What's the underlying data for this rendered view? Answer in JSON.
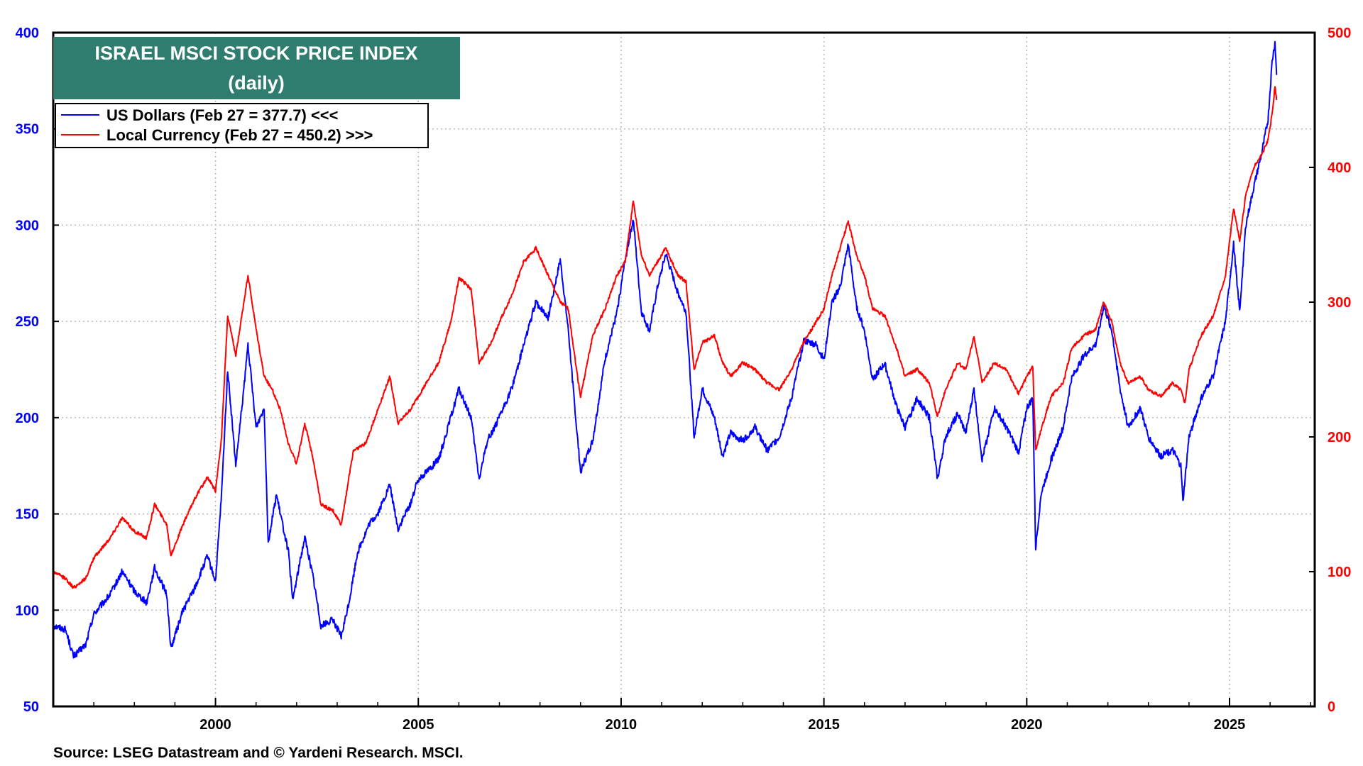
{
  "chart_data": {
    "type": "line",
    "title": "ISRAEL MSCI STOCK PRICE INDEX",
    "subtitle": "(daily)",
    "source": "Source: LSEG Datastream and © Yardeni Research. MSCI.",
    "xlim": [
      1996.0,
      2027.1
    ],
    "x_ticks": [
      2000,
      2005,
      2010,
      2015,
      2020,
      2025
    ],
    "x_tick_labels": [
      "2000",
      "2005",
      "2010",
      "2015",
      "2020",
      "2025"
    ],
    "y_left": {
      "lim": [
        50,
        400
      ],
      "ticks": [
        50,
        100,
        150,
        200,
        250,
        300,
        350,
        400
      ],
      "tick_labels": [
        "50",
        "100",
        "150",
        "200",
        "250",
        "300",
        "350",
        "400"
      ],
      "color": "#0000ff"
    },
    "y_right": {
      "lim": [
        0,
        500
      ],
      "ticks": [
        0,
        100,
        200,
        300,
        400,
        500
      ],
      "tick_labels": [
        "0",
        "100",
        "200",
        "300",
        "400",
        "500"
      ],
      "color": "#ff0000"
    },
    "grid": true,
    "legend_position": "top-left",
    "series": [
      {
        "name": "US Dollars",
        "legend_label": "US Dollars (Feb 27 = 377.7) <<<",
        "axis": "left",
        "color": "#0000ff",
        "points": [
          [
            1996.0,
            92
          ],
          [
            1996.3,
            90
          ],
          [
            1996.5,
            76
          ],
          [
            1996.8,
            82
          ],
          [
            1997.0,
            98
          ],
          [
            1997.4,
            108
          ],
          [
            1997.7,
            120
          ],
          [
            1998.0,
            110
          ],
          [
            1998.3,
            104
          ],
          [
            1998.5,
            122
          ],
          [
            1998.8,
            108
          ],
          [
            1998.9,
            80
          ],
          [
            1999.2,
            100
          ],
          [
            1999.5,
            112
          ],
          [
            1999.8,
            128
          ],
          [
            2000.0,
            115
          ],
          [
            2000.15,
            160
          ],
          [
            2000.3,
            225
          ],
          [
            2000.5,
            175
          ],
          [
            2000.7,
            215
          ],
          [
            2000.8,
            238
          ],
          [
            2001.0,
            195
          ],
          [
            2001.2,
            205
          ],
          [
            2001.3,
            135
          ],
          [
            2001.5,
            160
          ],
          [
            2001.8,
            130
          ],
          [
            2001.9,
            105
          ],
          [
            2002.2,
            138
          ],
          [
            2002.4,
            118
          ],
          [
            2002.6,
            92
          ],
          [
            2002.9,
            95
          ],
          [
            2003.1,
            86
          ],
          [
            2003.3,
            105
          ],
          [
            2003.5,
            130
          ],
          [
            2003.8,
            145
          ],
          [
            2004.0,
            150
          ],
          [
            2004.3,
            165
          ],
          [
            2004.5,
            142
          ],
          [
            2004.8,
            155
          ],
          [
            2005.0,
            168
          ],
          [
            2005.5,
            178
          ],
          [
            2005.8,
            200
          ],
          [
            2006.0,
            215
          ],
          [
            2006.3,
            200
          ],
          [
            2006.5,
            168
          ],
          [
            2006.7,
            188
          ],
          [
            2007.0,
            200
          ],
          [
            2007.3,
            215
          ],
          [
            2007.6,
            238
          ],
          [
            2007.9,
            260
          ],
          [
            2008.2,
            252
          ],
          [
            2008.5,
            282
          ],
          [
            2008.7,
            245
          ],
          [
            2008.9,
            195
          ],
          [
            2009.0,
            172
          ],
          [
            2009.3,
            188
          ],
          [
            2009.6,
            230
          ],
          [
            2009.9,
            255
          ],
          [
            2010.1,
            282
          ],
          [
            2010.3,
            303
          ],
          [
            2010.5,
            255
          ],
          [
            2010.7,
            245
          ],
          [
            2010.9,
            268
          ],
          [
            2011.1,
            285
          ],
          [
            2011.4,
            265
          ],
          [
            2011.6,
            255
          ],
          [
            2011.8,
            190
          ],
          [
            2012.0,
            215
          ],
          [
            2012.3,
            200
          ],
          [
            2012.5,
            180
          ],
          [
            2012.7,
            192
          ],
          [
            2013.0,
            188
          ],
          [
            2013.3,
            195
          ],
          [
            2013.6,
            183
          ],
          [
            2013.9,
            190
          ],
          [
            2014.2,
            210
          ],
          [
            2014.5,
            240
          ],
          [
            2014.8,
            238
          ],
          [
            2015.0,
            230
          ],
          [
            2015.2,
            260
          ],
          [
            2015.4,
            268
          ],
          [
            2015.6,
            290
          ],
          [
            2015.8,
            258
          ],
          [
            2016.0,
            245
          ],
          [
            2016.2,
            220
          ],
          [
            2016.5,
            228
          ],
          [
            2016.8,
            205
          ],
          [
            2017.0,
            195
          ],
          [
            2017.3,
            210
          ],
          [
            2017.6,
            200
          ],
          [
            2017.8,
            168
          ],
          [
            2018.0,
            190
          ],
          [
            2018.3,
            202
          ],
          [
            2018.5,
            192
          ],
          [
            2018.7,
            215
          ],
          [
            2018.9,
            178
          ],
          [
            2019.2,
            205
          ],
          [
            2019.5,
            195
          ],
          [
            2019.8,
            182
          ],
          [
            2020.0,
            205
          ],
          [
            2020.15,
            210
          ],
          [
            2020.22,
            132
          ],
          [
            2020.35,
            160
          ],
          [
            2020.6,
            178
          ],
          [
            2020.9,
            195
          ],
          [
            2021.1,
            220
          ],
          [
            2021.4,
            232
          ],
          [
            2021.7,
            238
          ],
          [
            2021.9,
            258
          ],
          [
            2022.1,
            245
          ],
          [
            2022.3,
            215
          ],
          [
            2022.5,
            195
          ],
          [
            2022.8,
            205
          ],
          [
            2023.0,
            190
          ],
          [
            2023.3,
            180
          ],
          [
            2023.6,
            183
          ],
          [
            2023.8,
            175
          ],
          [
            2023.85,
            156
          ],
          [
            2024.0,
            190
          ],
          [
            2024.3,
            210
          ],
          [
            2024.6,
            222
          ],
          [
            2024.9,
            250
          ],
          [
            2025.1,
            290
          ],
          [
            2025.25,
            255
          ],
          [
            2025.4,
            300
          ],
          [
            2025.6,
            320
          ],
          [
            2025.8,
            338
          ],
          [
            2025.95,
            355
          ],
          [
            2026.05,
            385
          ],
          [
            2026.12,
            395
          ],
          [
            2026.16,
            378
          ]
        ]
      },
      {
        "name": "Local Currency",
        "legend_label": "Local Currency (Feb 27 = 450.2) >>>",
        "axis": "right",
        "color": "#ff0000",
        "points": [
          [
            1996.0,
            100
          ],
          [
            1996.3,
            95
          ],
          [
            1996.5,
            88
          ],
          [
            1996.8,
            95
          ],
          [
            1997.0,
            110
          ],
          [
            1997.4,
            125
          ],
          [
            1997.7,
            140
          ],
          [
            1998.0,
            130
          ],
          [
            1998.3,
            125
          ],
          [
            1998.5,
            150
          ],
          [
            1998.8,
            135
          ],
          [
            1998.9,
            112
          ],
          [
            1999.2,
            135
          ],
          [
            1999.5,
            155
          ],
          [
            1999.8,
            170
          ],
          [
            2000.0,
            160
          ],
          [
            2000.15,
            200
          ],
          [
            2000.3,
            290
          ],
          [
            2000.5,
            260
          ],
          [
            2000.7,
            300
          ],
          [
            2000.8,
            320
          ],
          [
            2001.0,
            280
          ],
          [
            2001.2,
            245
          ],
          [
            2001.4,
            235
          ],
          [
            2001.6,
            220
          ],
          [
            2001.8,
            195
          ],
          [
            2002.0,
            180
          ],
          [
            2002.2,
            210
          ],
          [
            2002.4,
            185
          ],
          [
            2002.6,
            150
          ],
          [
            2002.9,
            145
          ],
          [
            2003.1,
            135
          ],
          [
            2003.4,
            190
          ],
          [
            2003.7,
            195
          ],
          [
            2004.0,
            220
          ],
          [
            2004.3,
            245
          ],
          [
            2004.5,
            210
          ],
          [
            2004.8,
            220
          ],
          [
            2005.0,
            230
          ],
          [
            2005.5,
            255
          ],
          [
            2005.8,
            285
          ],
          [
            2006.0,
            318
          ],
          [
            2006.3,
            310
          ],
          [
            2006.5,
            255
          ],
          [
            2006.8,
            270
          ],
          [
            2007.0,
            285
          ],
          [
            2007.3,
            305
          ],
          [
            2007.6,
            330
          ],
          [
            2007.9,
            340
          ],
          [
            2008.2,
            320
          ],
          [
            2008.5,
            300
          ],
          [
            2008.7,
            295
          ],
          [
            2008.9,
            250
          ],
          [
            2009.0,
            230
          ],
          [
            2009.3,
            275
          ],
          [
            2009.6,
            295
          ],
          [
            2009.9,
            320
          ],
          [
            2010.1,
            330
          ],
          [
            2010.3,
            375
          ],
          [
            2010.5,
            335
          ],
          [
            2010.7,
            320
          ],
          [
            2010.9,
            330
          ],
          [
            2011.1,
            340
          ],
          [
            2011.4,
            320
          ],
          [
            2011.6,
            315
          ],
          [
            2011.8,
            250
          ],
          [
            2012.0,
            270
          ],
          [
            2012.3,
            275
          ],
          [
            2012.5,
            255
          ],
          [
            2012.7,
            245
          ],
          [
            2013.0,
            255
          ],
          [
            2013.3,
            250
          ],
          [
            2013.6,
            240
          ],
          [
            2013.9,
            235
          ],
          [
            2014.2,
            250
          ],
          [
            2014.5,
            270
          ],
          [
            2014.8,
            285
          ],
          [
            2015.0,
            295
          ],
          [
            2015.2,
            320
          ],
          [
            2015.4,
            340
          ],
          [
            2015.6,
            360
          ],
          [
            2015.8,
            335
          ],
          [
            2016.0,
            320
          ],
          [
            2016.2,
            295
          ],
          [
            2016.5,
            290
          ],
          [
            2016.8,
            265
          ],
          [
            2017.0,
            245
          ],
          [
            2017.3,
            250
          ],
          [
            2017.6,
            240
          ],
          [
            2017.8,
            215
          ],
          [
            2018.0,
            235
          ],
          [
            2018.3,
            255
          ],
          [
            2018.5,
            250
          ],
          [
            2018.7,
            275
          ],
          [
            2018.9,
            240
          ],
          [
            2019.2,
            255
          ],
          [
            2019.5,
            250
          ],
          [
            2019.8,
            232
          ],
          [
            2020.0,
            245
          ],
          [
            2020.15,
            252
          ],
          [
            2020.22,
            190
          ],
          [
            2020.35,
            205
          ],
          [
            2020.6,
            230
          ],
          [
            2020.9,
            240
          ],
          [
            2021.1,
            265
          ],
          [
            2021.4,
            275
          ],
          [
            2021.7,
            280
          ],
          [
            2021.9,
            300
          ],
          [
            2022.1,
            285
          ],
          [
            2022.3,
            255
          ],
          [
            2022.5,
            240
          ],
          [
            2022.8,
            245
          ],
          [
            2023.0,
            235
          ],
          [
            2023.3,
            230
          ],
          [
            2023.6,
            240
          ],
          [
            2023.8,
            235
          ],
          [
            2023.9,
            225
          ],
          [
            2024.0,
            250
          ],
          [
            2024.3,
            275
          ],
          [
            2024.6,
            290
          ],
          [
            2024.9,
            320
          ],
          [
            2025.1,
            370
          ],
          [
            2025.25,
            345
          ],
          [
            2025.4,
            380
          ],
          [
            2025.6,
            400
          ],
          [
            2025.8,
            410
          ],
          [
            2025.95,
            420
          ],
          [
            2026.05,
            440
          ],
          [
            2026.12,
            460
          ],
          [
            2026.16,
            450
          ]
        ]
      }
    ]
  }
}
